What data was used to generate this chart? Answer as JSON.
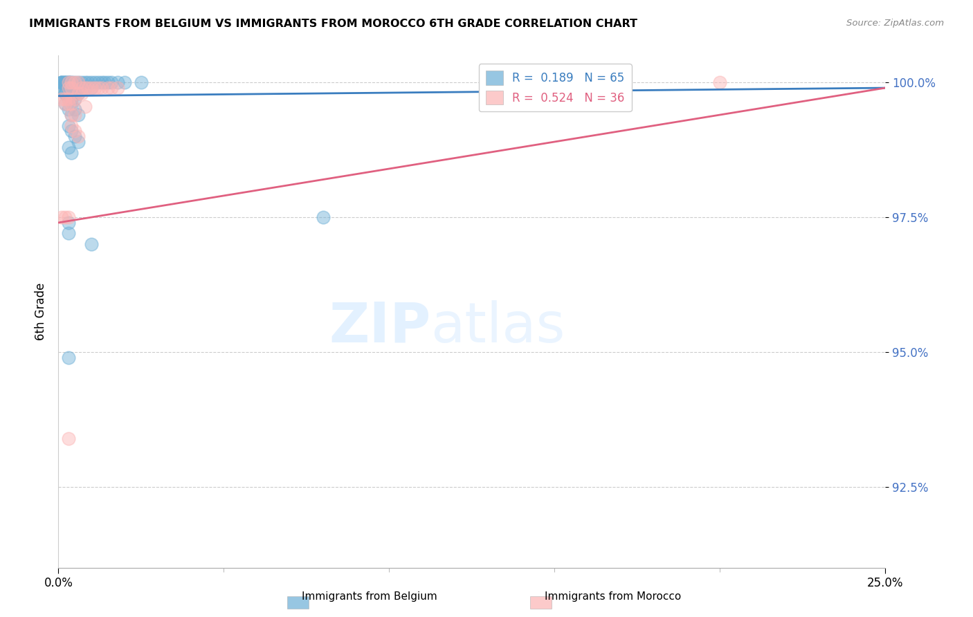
{
  "title": "IMMIGRANTS FROM BELGIUM VS IMMIGRANTS FROM MOROCCO 6TH GRADE CORRELATION CHART",
  "source": "Source: ZipAtlas.com",
  "ylabel": "6th Grade",
  "xlim": [
    0.0,
    0.25
  ],
  "ylim": [
    0.91,
    1.005
  ],
  "y_ticks": [
    0.925,
    0.95,
    0.975,
    1.0
  ],
  "belgium_color": "#6baed6",
  "morocco_color": "#fcb4b4",
  "belgium_line_color": "#3a7dbf",
  "morocco_line_color": "#e06080",
  "R_belgium": 0.189,
  "N_belgium": 65,
  "R_morocco": 0.524,
  "N_morocco": 36,
  "background_color": "#ffffff",
  "belgium_x": [
    0.001,
    0.001,
    0.001,
    0.001,
    0.001,
    0.002,
    0.002,
    0.002,
    0.002,
    0.002,
    0.002,
    0.003,
    0.003,
    0.003,
    0.003,
    0.003,
    0.003,
    0.003,
    0.004,
    0.004,
    0.004,
    0.004,
    0.004,
    0.005,
    0.005,
    0.005,
    0.005,
    0.006,
    0.006,
    0.006,
    0.007,
    0.007,
    0.008,
    0.008,
    0.009,
    0.01,
    0.01,
    0.011,
    0.012,
    0.013,
    0.014,
    0.015,
    0.016,
    0.018,
    0.02,
    0.025,
    0.002,
    0.003,
    0.004,
    0.005,
    0.006,
    0.002,
    0.003,
    0.004,
    0.003,
    0.004,
    0.005,
    0.006,
    0.003,
    0.004,
    0.08,
    0.003,
    0.003,
    0.01,
    0.003
  ],
  "belgium_y": [
    1.0,
    1.0,
    1.0,
    1.0,
    0.999,
    1.0,
    1.0,
    1.0,
    1.0,
    0.999,
    0.998,
    1.0,
    1.0,
    1.0,
    1.0,
    0.999,
    0.998,
    0.997,
    1.0,
    1.0,
    0.999,
    0.998,
    0.997,
    1.0,
    0.999,
    0.998,
    0.997,
    1.0,
    0.999,
    0.998,
    1.0,
    0.999,
    1.0,
    0.999,
    1.0,
    1.0,
    0.999,
    1.0,
    1.0,
    1.0,
    1.0,
    1.0,
    1.0,
    1.0,
    1.0,
    1.0,
    0.998,
    0.997,
    0.996,
    0.995,
    0.994,
    0.996,
    0.995,
    0.994,
    0.992,
    0.991,
    0.99,
    0.989,
    0.988,
    0.987,
    0.975,
    0.974,
    0.972,
    0.97,
    0.949
  ],
  "morocco_x": [
    0.001,
    0.001,
    0.002,
    0.002,
    0.002,
    0.003,
    0.003,
    0.003,
    0.003,
    0.003,
    0.004,
    0.004,
    0.004,
    0.004,
    0.005,
    0.005,
    0.005,
    0.006,
    0.006,
    0.007,
    0.007,
    0.008,
    0.008,
    0.009,
    0.01,
    0.011,
    0.012,
    0.013,
    0.015,
    0.016,
    0.018,
    0.004,
    0.005,
    0.006,
    0.2,
    0.003
  ],
  "morocco_y": [
    0.997,
    0.975,
    0.997,
    0.996,
    0.975,
    1.0,
    0.999,
    0.997,
    0.996,
    0.975,
    1.0,
    0.999,
    0.996,
    0.994,
    1.0,
    0.997,
    0.994,
    1.0,
    0.998,
    0.999,
    0.998,
    0.999,
    0.9955,
    0.999,
    0.999,
    0.999,
    0.999,
    0.999,
    0.999,
    0.999,
    0.999,
    0.992,
    0.991,
    0.99,
    1.0,
    0.934
  ]
}
